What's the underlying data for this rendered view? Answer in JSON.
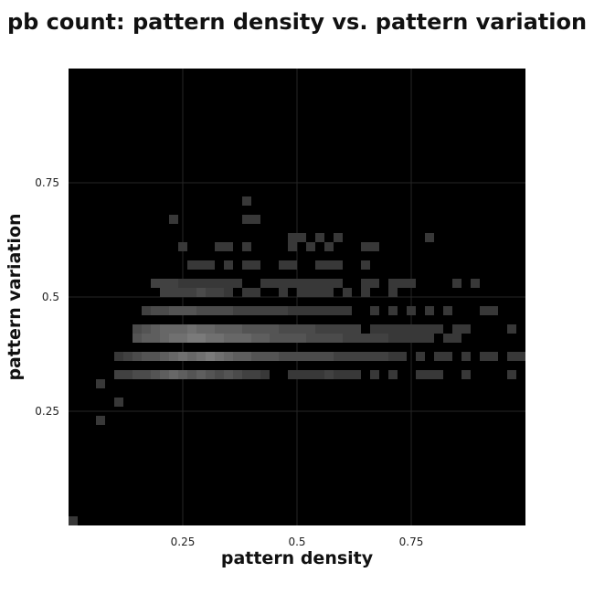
{
  "chart_data": {
    "type": "heatmap",
    "title": "pb count: pattern density vs. pattern variation",
    "xlabel": "pattern density",
    "ylabel": "pattern variation",
    "xlim": [
      0,
      1
    ],
    "ylim": [
      0,
      1
    ],
    "x_ticks": [
      {
        "value": 0.25,
        "label": "0.25"
      },
      {
        "value": 0.5,
        "label": "0.5"
      },
      {
        "value": 0.75,
        "label": "0.75"
      }
    ],
    "y_ticks": [
      {
        "value": 0.25,
        "label": "0.25"
      },
      {
        "value": 0.5,
        "label": "0.5"
      },
      {
        "value": 0.75,
        "label": "0.75"
      }
    ],
    "grid": true,
    "bin_size": 0.02,
    "colormap": {
      "low": "#000000",
      "high": "#bbbbbb"
    },
    "background_color": "#000000",
    "grid_color": "#262626",
    "cells": [
      {
        "x": 0.0,
        "y": 0.0,
        "v": 0.3
      },
      {
        "x": 0.06,
        "y": 0.22,
        "v": 0.3
      },
      {
        "x": 0.1,
        "y": 0.26,
        "v": 0.3
      },
      {
        "x": 0.06,
        "y": 0.3,
        "v": 0.3
      },
      {
        "x": 0.1,
        "y": 0.32,
        "v": 0.35
      },
      {
        "x": 0.12,
        "y": 0.32,
        "v": 0.35
      },
      {
        "x": 0.14,
        "y": 0.32,
        "v": 0.4
      },
      {
        "x": 0.16,
        "y": 0.32,
        "v": 0.4
      },
      {
        "x": 0.18,
        "y": 0.32,
        "v": 0.45
      },
      {
        "x": 0.2,
        "y": 0.32,
        "v": 0.5
      },
      {
        "x": 0.22,
        "y": 0.32,
        "v": 0.55
      },
      {
        "x": 0.24,
        "y": 0.32,
        "v": 0.5
      },
      {
        "x": 0.26,
        "y": 0.32,
        "v": 0.45
      },
      {
        "x": 0.28,
        "y": 0.32,
        "v": 0.5
      },
      {
        "x": 0.3,
        "y": 0.32,
        "v": 0.45
      },
      {
        "x": 0.32,
        "y": 0.32,
        "v": 0.4
      },
      {
        "x": 0.34,
        "y": 0.32,
        "v": 0.45
      },
      {
        "x": 0.36,
        "y": 0.32,
        "v": 0.4
      },
      {
        "x": 0.38,
        "y": 0.32,
        "v": 0.35
      },
      {
        "x": 0.4,
        "y": 0.32,
        "v": 0.35
      },
      {
        "x": 0.42,
        "y": 0.32,
        "v": 0.3
      },
      {
        "x": 0.48,
        "y": 0.32,
        "v": 0.3
      },
      {
        "x": 0.5,
        "y": 0.32,
        "v": 0.3
      },
      {
        "x": 0.52,
        "y": 0.32,
        "v": 0.3
      },
      {
        "x": 0.54,
        "y": 0.32,
        "v": 0.3
      },
      {
        "x": 0.56,
        "y": 0.32,
        "v": 0.35
      },
      {
        "x": 0.58,
        "y": 0.32,
        "v": 0.3
      },
      {
        "x": 0.6,
        "y": 0.32,
        "v": 0.3
      },
      {
        "x": 0.62,
        "y": 0.32,
        "v": 0.3
      },
      {
        "x": 0.66,
        "y": 0.32,
        "v": 0.3
      },
      {
        "x": 0.7,
        "y": 0.32,
        "v": 0.3
      },
      {
        "x": 0.76,
        "y": 0.32,
        "v": 0.3
      },
      {
        "x": 0.78,
        "y": 0.32,
        "v": 0.3
      },
      {
        "x": 0.8,
        "y": 0.32,
        "v": 0.3
      },
      {
        "x": 0.86,
        "y": 0.32,
        "v": 0.3
      },
      {
        "x": 0.96,
        "y": 0.32,
        "v": 0.3
      },
      {
        "x": 0.1,
        "y": 0.36,
        "v": 0.3
      },
      {
        "x": 0.12,
        "y": 0.36,
        "v": 0.35
      },
      {
        "x": 0.14,
        "y": 0.36,
        "v": 0.4
      },
      {
        "x": 0.16,
        "y": 0.36,
        "v": 0.45
      },
      {
        "x": 0.18,
        "y": 0.36,
        "v": 0.45
      },
      {
        "x": 0.2,
        "y": 0.36,
        "v": 0.5
      },
      {
        "x": 0.22,
        "y": 0.36,
        "v": 0.55
      },
      {
        "x": 0.24,
        "y": 0.36,
        "v": 0.6
      },
      {
        "x": 0.26,
        "y": 0.36,
        "v": 0.55
      },
      {
        "x": 0.28,
        "y": 0.36,
        "v": 0.6
      },
      {
        "x": 0.3,
        "y": 0.36,
        "v": 0.65
      },
      {
        "x": 0.32,
        "y": 0.36,
        "v": 0.6
      },
      {
        "x": 0.34,
        "y": 0.36,
        "v": 0.55
      },
      {
        "x": 0.36,
        "y": 0.36,
        "v": 0.5
      },
      {
        "x": 0.38,
        "y": 0.36,
        "v": 0.5
      },
      {
        "x": 0.4,
        "y": 0.36,
        "v": 0.45
      },
      {
        "x": 0.42,
        "y": 0.36,
        "v": 0.45
      },
      {
        "x": 0.44,
        "y": 0.36,
        "v": 0.45
      },
      {
        "x": 0.46,
        "y": 0.36,
        "v": 0.4
      },
      {
        "x": 0.48,
        "y": 0.36,
        "v": 0.4
      },
      {
        "x": 0.5,
        "y": 0.36,
        "v": 0.4
      },
      {
        "x": 0.52,
        "y": 0.36,
        "v": 0.4
      },
      {
        "x": 0.54,
        "y": 0.36,
        "v": 0.4
      },
      {
        "x": 0.56,
        "y": 0.36,
        "v": 0.4
      },
      {
        "x": 0.58,
        "y": 0.36,
        "v": 0.35
      },
      {
        "x": 0.6,
        "y": 0.36,
        "v": 0.35
      },
      {
        "x": 0.62,
        "y": 0.36,
        "v": 0.35
      },
      {
        "x": 0.64,
        "y": 0.36,
        "v": 0.35
      },
      {
        "x": 0.66,
        "y": 0.36,
        "v": 0.35
      },
      {
        "x": 0.68,
        "y": 0.36,
        "v": 0.35
      },
      {
        "x": 0.7,
        "y": 0.36,
        "v": 0.3
      },
      {
        "x": 0.72,
        "y": 0.36,
        "v": 0.3
      },
      {
        "x": 0.76,
        "y": 0.36,
        "v": 0.3
      },
      {
        "x": 0.8,
        "y": 0.36,
        "v": 0.3
      },
      {
        "x": 0.82,
        "y": 0.36,
        "v": 0.3
      },
      {
        "x": 0.86,
        "y": 0.36,
        "v": 0.3
      },
      {
        "x": 0.9,
        "y": 0.36,
        "v": 0.3
      },
      {
        "x": 0.92,
        "y": 0.36,
        "v": 0.3
      },
      {
        "x": 0.96,
        "y": 0.36,
        "v": 0.3
      },
      {
        "x": 0.98,
        "y": 0.36,
        "v": 0.3
      },
      {
        "x": 0.14,
        "y": 0.4,
        "v": 0.45
      },
      {
        "x": 0.16,
        "y": 0.4,
        "v": 0.5
      },
      {
        "x": 0.18,
        "y": 0.4,
        "v": 0.5
      },
      {
        "x": 0.2,
        "y": 0.4,
        "v": 0.55
      },
      {
        "x": 0.22,
        "y": 0.4,
        "v": 0.6
      },
      {
        "x": 0.24,
        "y": 0.4,
        "v": 0.6
      },
      {
        "x": 0.26,
        "y": 0.4,
        "v": 0.65
      },
      {
        "x": 0.28,
        "y": 0.4,
        "v": 0.65
      },
      {
        "x": 0.3,
        "y": 0.4,
        "v": 0.6
      },
      {
        "x": 0.32,
        "y": 0.4,
        "v": 0.6
      },
      {
        "x": 0.34,
        "y": 0.4,
        "v": 0.55
      },
      {
        "x": 0.36,
        "y": 0.4,
        "v": 0.55
      },
      {
        "x": 0.38,
        "y": 0.4,
        "v": 0.55
      },
      {
        "x": 0.4,
        "y": 0.4,
        "v": 0.5
      },
      {
        "x": 0.42,
        "y": 0.4,
        "v": 0.5
      },
      {
        "x": 0.44,
        "y": 0.4,
        "v": 0.45
      },
      {
        "x": 0.46,
        "y": 0.4,
        "v": 0.45
      },
      {
        "x": 0.48,
        "y": 0.4,
        "v": 0.45
      },
      {
        "x": 0.5,
        "y": 0.4,
        "v": 0.45
      },
      {
        "x": 0.52,
        "y": 0.4,
        "v": 0.4
      },
      {
        "x": 0.54,
        "y": 0.4,
        "v": 0.4
      },
      {
        "x": 0.56,
        "y": 0.4,
        "v": 0.4
      },
      {
        "x": 0.58,
        "y": 0.4,
        "v": 0.4
      },
      {
        "x": 0.6,
        "y": 0.4,
        "v": 0.35
      },
      {
        "x": 0.62,
        "y": 0.4,
        "v": 0.35
      },
      {
        "x": 0.64,
        "y": 0.4,
        "v": 0.35
      },
      {
        "x": 0.66,
        "y": 0.4,
        "v": 0.35
      },
      {
        "x": 0.68,
        "y": 0.4,
        "v": 0.35
      },
      {
        "x": 0.7,
        "y": 0.4,
        "v": 0.3
      },
      {
        "x": 0.72,
        "y": 0.4,
        "v": 0.3
      },
      {
        "x": 0.74,
        "y": 0.4,
        "v": 0.3
      },
      {
        "x": 0.76,
        "y": 0.4,
        "v": 0.3
      },
      {
        "x": 0.78,
        "y": 0.4,
        "v": 0.3
      },
      {
        "x": 0.82,
        "y": 0.4,
        "v": 0.3
      },
      {
        "x": 0.84,
        "y": 0.4,
        "v": 0.3
      },
      {
        "x": 0.14,
        "y": 0.42,
        "v": 0.4
      },
      {
        "x": 0.16,
        "y": 0.42,
        "v": 0.45
      },
      {
        "x": 0.18,
        "y": 0.42,
        "v": 0.5
      },
      {
        "x": 0.2,
        "y": 0.42,
        "v": 0.55
      },
      {
        "x": 0.22,
        "y": 0.42,
        "v": 0.55
      },
      {
        "x": 0.24,
        "y": 0.42,
        "v": 0.55
      },
      {
        "x": 0.26,
        "y": 0.42,
        "v": 0.6
      },
      {
        "x": 0.28,
        "y": 0.42,
        "v": 0.55
      },
      {
        "x": 0.3,
        "y": 0.42,
        "v": 0.55
      },
      {
        "x": 0.32,
        "y": 0.42,
        "v": 0.5
      },
      {
        "x": 0.34,
        "y": 0.42,
        "v": 0.5
      },
      {
        "x": 0.36,
        "y": 0.42,
        "v": 0.5
      },
      {
        "x": 0.38,
        "y": 0.42,
        "v": 0.45
      },
      {
        "x": 0.4,
        "y": 0.42,
        "v": 0.45
      },
      {
        "x": 0.42,
        "y": 0.42,
        "v": 0.45
      },
      {
        "x": 0.44,
        "y": 0.42,
        "v": 0.45
      },
      {
        "x": 0.46,
        "y": 0.42,
        "v": 0.4
      },
      {
        "x": 0.48,
        "y": 0.42,
        "v": 0.4
      },
      {
        "x": 0.5,
        "y": 0.42,
        "v": 0.4
      },
      {
        "x": 0.52,
        "y": 0.42,
        "v": 0.4
      },
      {
        "x": 0.54,
        "y": 0.42,
        "v": 0.35
      },
      {
        "x": 0.56,
        "y": 0.42,
        "v": 0.35
      },
      {
        "x": 0.58,
        "y": 0.42,
        "v": 0.35
      },
      {
        "x": 0.6,
        "y": 0.42,
        "v": 0.35
      },
      {
        "x": 0.62,
        "y": 0.42,
        "v": 0.35
      },
      {
        "x": 0.66,
        "y": 0.42,
        "v": 0.3
      },
      {
        "x": 0.68,
        "y": 0.42,
        "v": 0.3
      },
      {
        "x": 0.7,
        "y": 0.42,
        "v": 0.3
      },
      {
        "x": 0.72,
        "y": 0.42,
        "v": 0.3
      },
      {
        "x": 0.74,
        "y": 0.42,
        "v": 0.3
      },
      {
        "x": 0.76,
        "y": 0.42,
        "v": 0.3
      },
      {
        "x": 0.78,
        "y": 0.42,
        "v": 0.3
      },
      {
        "x": 0.8,
        "y": 0.42,
        "v": 0.3
      },
      {
        "x": 0.84,
        "y": 0.42,
        "v": 0.3
      },
      {
        "x": 0.86,
        "y": 0.42,
        "v": 0.3
      },
      {
        "x": 0.96,
        "y": 0.42,
        "v": 0.3
      },
      {
        "x": 0.16,
        "y": 0.46,
        "v": 0.35
      },
      {
        "x": 0.18,
        "y": 0.46,
        "v": 0.4
      },
      {
        "x": 0.2,
        "y": 0.46,
        "v": 0.4
      },
      {
        "x": 0.22,
        "y": 0.46,
        "v": 0.45
      },
      {
        "x": 0.24,
        "y": 0.46,
        "v": 0.45
      },
      {
        "x": 0.26,
        "y": 0.46,
        "v": 0.45
      },
      {
        "x": 0.28,
        "y": 0.46,
        "v": 0.4
      },
      {
        "x": 0.3,
        "y": 0.46,
        "v": 0.4
      },
      {
        "x": 0.32,
        "y": 0.46,
        "v": 0.4
      },
      {
        "x": 0.34,
        "y": 0.46,
        "v": 0.4
      },
      {
        "x": 0.36,
        "y": 0.46,
        "v": 0.35
      },
      {
        "x": 0.38,
        "y": 0.46,
        "v": 0.35
      },
      {
        "x": 0.4,
        "y": 0.46,
        "v": 0.35
      },
      {
        "x": 0.42,
        "y": 0.46,
        "v": 0.35
      },
      {
        "x": 0.44,
        "y": 0.46,
        "v": 0.35
      },
      {
        "x": 0.46,
        "y": 0.46,
        "v": 0.35
      },
      {
        "x": 0.48,
        "y": 0.46,
        "v": 0.3
      },
      {
        "x": 0.5,
        "y": 0.46,
        "v": 0.3
      },
      {
        "x": 0.52,
        "y": 0.46,
        "v": 0.3
      },
      {
        "x": 0.54,
        "y": 0.46,
        "v": 0.3
      },
      {
        "x": 0.56,
        "y": 0.46,
        "v": 0.3
      },
      {
        "x": 0.58,
        "y": 0.46,
        "v": 0.3
      },
      {
        "x": 0.6,
        "y": 0.46,
        "v": 0.3
      },
      {
        "x": 0.66,
        "y": 0.46,
        "v": 0.3
      },
      {
        "x": 0.7,
        "y": 0.46,
        "v": 0.3
      },
      {
        "x": 0.74,
        "y": 0.46,
        "v": 0.3
      },
      {
        "x": 0.78,
        "y": 0.46,
        "v": 0.3
      },
      {
        "x": 0.82,
        "y": 0.46,
        "v": 0.3
      },
      {
        "x": 0.9,
        "y": 0.46,
        "v": 0.3
      },
      {
        "x": 0.92,
        "y": 0.46,
        "v": 0.3
      },
      {
        "x": 0.2,
        "y": 0.5,
        "v": 0.35
      },
      {
        "x": 0.22,
        "y": 0.5,
        "v": 0.35
      },
      {
        "x": 0.24,
        "y": 0.5,
        "v": 0.35
      },
      {
        "x": 0.26,
        "y": 0.5,
        "v": 0.35
      },
      {
        "x": 0.28,
        "y": 0.5,
        "v": 0.4
      },
      {
        "x": 0.3,
        "y": 0.5,
        "v": 0.35
      },
      {
        "x": 0.32,
        "y": 0.5,
        "v": 0.35
      },
      {
        "x": 0.34,
        "y": 0.5,
        "v": 0.3
      },
      {
        "x": 0.38,
        "y": 0.5,
        "v": 0.3
      },
      {
        "x": 0.4,
        "y": 0.5,
        "v": 0.3
      },
      {
        "x": 0.46,
        "y": 0.5,
        "v": 0.3
      },
      {
        "x": 0.5,
        "y": 0.5,
        "v": 0.3
      },
      {
        "x": 0.52,
        "y": 0.5,
        "v": 0.3
      },
      {
        "x": 0.54,
        "y": 0.5,
        "v": 0.3
      },
      {
        "x": 0.56,
        "y": 0.5,
        "v": 0.3
      },
      {
        "x": 0.6,
        "y": 0.5,
        "v": 0.3
      },
      {
        "x": 0.64,
        "y": 0.5,
        "v": 0.3
      },
      {
        "x": 0.7,
        "y": 0.5,
        "v": 0.3
      },
      {
        "x": 0.18,
        "y": 0.52,
        "v": 0.35
      },
      {
        "x": 0.2,
        "y": 0.52,
        "v": 0.35
      },
      {
        "x": 0.22,
        "y": 0.52,
        "v": 0.35
      },
      {
        "x": 0.24,
        "y": 0.52,
        "v": 0.3
      },
      {
        "x": 0.26,
        "y": 0.52,
        "v": 0.3
      },
      {
        "x": 0.28,
        "y": 0.52,
        "v": 0.3
      },
      {
        "x": 0.3,
        "y": 0.52,
        "v": 0.3
      },
      {
        "x": 0.32,
        "y": 0.52,
        "v": 0.3
      },
      {
        "x": 0.34,
        "y": 0.52,
        "v": 0.3
      },
      {
        "x": 0.36,
        "y": 0.52,
        "v": 0.3
      },
      {
        "x": 0.42,
        "y": 0.52,
        "v": 0.3
      },
      {
        "x": 0.44,
        "y": 0.52,
        "v": 0.3
      },
      {
        "x": 0.46,
        "y": 0.52,
        "v": 0.3
      },
      {
        "x": 0.48,
        "y": 0.52,
        "v": 0.3
      },
      {
        "x": 0.5,
        "y": 0.52,
        "v": 0.3
      },
      {
        "x": 0.52,
        "y": 0.52,
        "v": 0.3
      },
      {
        "x": 0.54,
        "y": 0.52,
        "v": 0.3
      },
      {
        "x": 0.56,
        "y": 0.52,
        "v": 0.3
      },
      {
        "x": 0.58,
        "y": 0.52,
        "v": 0.3
      },
      {
        "x": 0.64,
        "y": 0.52,
        "v": 0.3
      },
      {
        "x": 0.66,
        "y": 0.52,
        "v": 0.3
      },
      {
        "x": 0.7,
        "y": 0.52,
        "v": 0.3
      },
      {
        "x": 0.72,
        "y": 0.52,
        "v": 0.3
      },
      {
        "x": 0.74,
        "y": 0.52,
        "v": 0.3
      },
      {
        "x": 0.84,
        "y": 0.52,
        "v": 0.3
      },
      {
        "x": 0.88,
        "y": 0.52,
        "v": 0.3
      },
      {
        "x": 0.26,
        "y": 0.56,
        "v": 0.3
      },
      {
        "x": 0.28,
        "y": 0.56,
        "v": 0.3
      },
      {
        "x": 0.3,
        "y": 0.56,
        "v": 0.3
      },
      {
        "x": 0.34,
        "y": 0.56,
        "v": 0.3
      },
      {
        "x": 0.38,
        "y": 0.56,
        "v": 0.3
      },
      {
        "x": 0.4,
        "y": 0.56,
        "v": 0.3
      },
      {
        "x": 0.46,
        "y": 0.56,
        "v": 0.3
      },
      {
        "x": 0.48,
        "y": 0.56,
        "v": 0.3
      },
      {
        "x": 0.54,
        "y": 0.56,
        "v": 0.3
      },
      {
        "x": 0.56,
        "y": 0.56,
        "v": 0.3
      },
      {
        "x": 0.58,
        "y": 0.56,
        "v": 0.3
      },
      {
        "x": 0.64,
        "y": 0.56,
        "v": 0.3
      },
      {
        "x": 0.24,
        "y": 0.6,
        "v": 0.3
      },
      {
        "x": 0.32,
        "y": 0.6,
        "v": 0.3
      },
      {
        "x": 0.34,
        "y": 0.6,
        "v": 0.3
      },
      {
        "x": 0.38,
        "y": 0.6,
        "v": 0.3
      },
      {
        "x": 0.48,
        "y": 0.6,
        "v": 0.3
      },
      {
        "x": 0.52,
        "y": 0.6,
        "v": 0.3
      },
      {
        "x": 0.56,
        "y": 0.6,
        "v": 0.3
      },
      {
        "x": 0.64,
        "y": 0.6,
        "v": 0.3
      },
      {
        "x": 0.66,
        "y": 0.6,
        "v": 0.3
      },
      {
        "x": 0.48,
        "y": 0.62,
        "v": 0.3
      },
      {
        "x": 0.5,
        "y": 0.62,
        "v": 0.3
      },
      {
        "x": 0.54,
        "y": 0.62,
        "v": 0.3
      },
      {
        "x": 0.58,
        "y": 0.62,
        "v": 0.3
      },
      {
        "x": 0.78,
        "y": 0.62,
        "v": 0.3
      },
      {
        "x": 0.22,
        "y": 0.66,
        "v": 0.3
      },
      {
        "x": 0.38,
        "y": 0.66,
        "v": 0.3
      },
      {
        "x": 0.4,
        "y": 0.66,
        "v": 0.3
      },
      {
        "x": 0.38,
        "y": 0.7,
        "v": 0.3
      }
    ]
  }
}
